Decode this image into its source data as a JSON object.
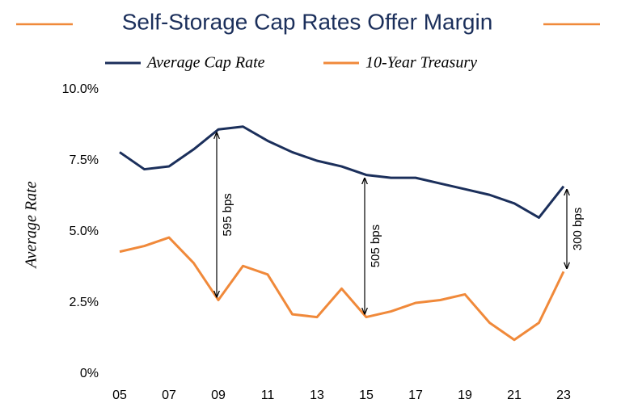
{
  "chart_data": {
    "type": "line",
    "title": "Self-Storage Cap Rates Offer Margin",
    "y_label": "Average Rate",
    "categories": [
      "05",
      null,
      "07",
      null,
      "09",
      null,
      "11",
      null,
      "13",
      null,
      "15",
      null,
      "17",
      null,
      "19",
      null,
      "21",
      null,
      "23"
    ],
    "series": [
      {
        "name": "Average Cap Rate",
        "color": "#1b2f5b",
        "values": [
          7.8,
          7.2,
          7.3,
          7.9,
          8.6,
          8.7,
          8.2,
          7.8,
          7.5,
          7.3,
          7.0,
          6.9,
          6.9,
          6.7,
          6.5,
          6.3,
          6.0,
          5.5,
          6.6
        ]
      },
      {
        "name": "10-Year Treasury",
        "color": "#f0893a",
        "values": [
          4.3,
          4.5,
          4.8,
          3.9,
          2.6,
          3.8,
          3.5,
          2.1,
          2.0,
          3.0,
          2.0,
          2.2,
          2.5,
          2.6,
          2.8,
          1.8,
          1.2,
          1.8,
          3.6
        ]
      }
    ],
    "annotations": [
      {
        "label": "595 bps",
        "category": "09"
      },
      {
        "label": "505 bps",
        "category": "15"
      },
      {
        "label": "300 bps",
        "category": "23"
      }
    ],
    "ylim": [
      0,
      10
    ],
    "yticks": [
      {
        "value": 0,
        "label": "0%"
      },
      {
        "value": 2.5,
        "label": "2.5%"
      },
      {
        "value": 5,
        "label": "5.0%"
      },
      {
        "value": 7.5,
        "label": "7.5%"
      },
      {
        "value": 10,
        "label": "10.0%"
      }
    ],
    "grid": false
  }
}
